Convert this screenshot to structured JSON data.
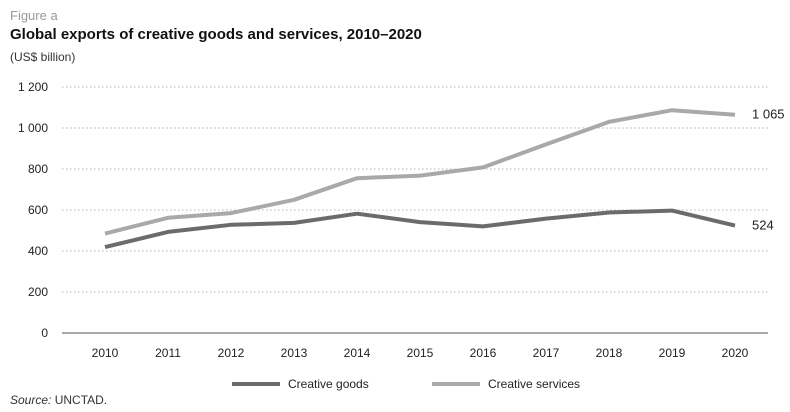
{
  "figure_label": "Figure a",
  "source": {
    "label": "Source:",
    "text": "UNCTAD."
  },
  "colors": {
    "creative_goods": "#6b6b6b",
    "creative_services": "#a9a9a9",
    "grid": "#b5b5b5",
    "axis": "#555555"
  },
  "chart_data": {
    "type": "line",
    "title": "Global exports of creative goods and services, 2010–2020",
    "ylabel": "(US$ billion)",
    "xlabel": "",
    "categories": [
      "2010",
      "2011",
      "2012",
      "2013",
      "2014",
      "2015",
      "2016",
      "2017",
      "2018",
      "2019",
      "2020"
    ],
    "ylim": [
      0,
      1200
    ],
    "yticks": [
      0,
      200,
      400,
      600,
      800,
      1000,
      1200
    ],
    "ytick_labels": [
      "0",
      "200",
      "400",
      "600",
      "800",
      "1 000",
      "1 200"
    ],
    "grid": "horizontal dotted",
    "legend_position": "bottom",
    "series": [
      {
        "name": "Creative goods",
        "color_key": "creative_goods",
        "values": [
          419,
          493,
          528,
          537,
          582,
          541,
          520,
          558,
          588,
          597,
          524
        ],
        "end_label": "524"
      },
      {
        "name": "Creative services",
        "color_key": "creative_services",
        "values": [
          485,
          562,
          585,
          650,
          755,
          768,
          808,
          920,
          1030,
          1087,
          1065
        ],
        "end_label": "1 065"
      }
    ]
  }
}
